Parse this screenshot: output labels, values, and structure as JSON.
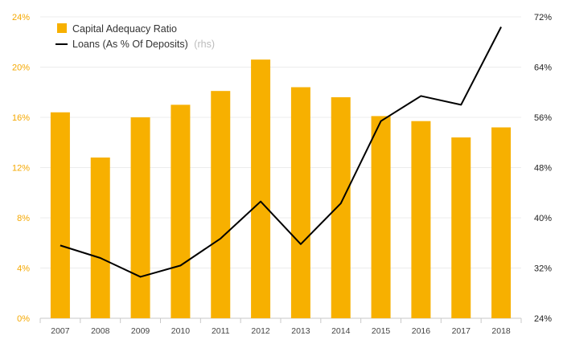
{
  "chart_data": {
    "type": "bar",
    "categories": [
      "2007",
      "2008",
      "2009",
      "2010",
      "2011",
      "2012",
      "2013",
      "2014",
      "2015",
      "2016",
      "2017",
      "2018"
    ],
    "series": [
      {
        "name": "Capital Adequacy Ratio",
        "type": "bar",
        "axis": "left",
        "color": "#f7b000",
        "values": [
          16.4,
          12.8,
          16.0,
          17.0,
          18.1,
          20.6,
          18.4,
          17.6,
          16.1,
          15.7,
          14.4,
          15.2
        ]
      },
      {
        "name": "Loans (As % Of Deposits)",
        "name_suffix": "(rhs)",
        "type": "line",
        "axis": "right",
        "color": "#000000",
        "values": [
          35.6,
          33.6,
          30.6,
          32.4,
          36.7,
          42.6,
          35.8,
          42.3,
          55.4,
          59.4,
          58.0,
          70.4
        ]
      }
    ],
    "y_left": {
      "ticks": [
        "0%",
        "4%",
        "8%",
        "12%",
        "16%",
        "20%",
        "24%"
      ],
      "range": [
        0,
        24
      ]
    },
    "y_right": {
      "ticks": [
        "24%",
        "32%",
        "40%",
        "48%",
        "56%",
        "64%",
        "72%"
      ],
      "range": [
        24,
        72
      ]
    },
    "grid": true,
    "legend": "top-left"
  }
}
